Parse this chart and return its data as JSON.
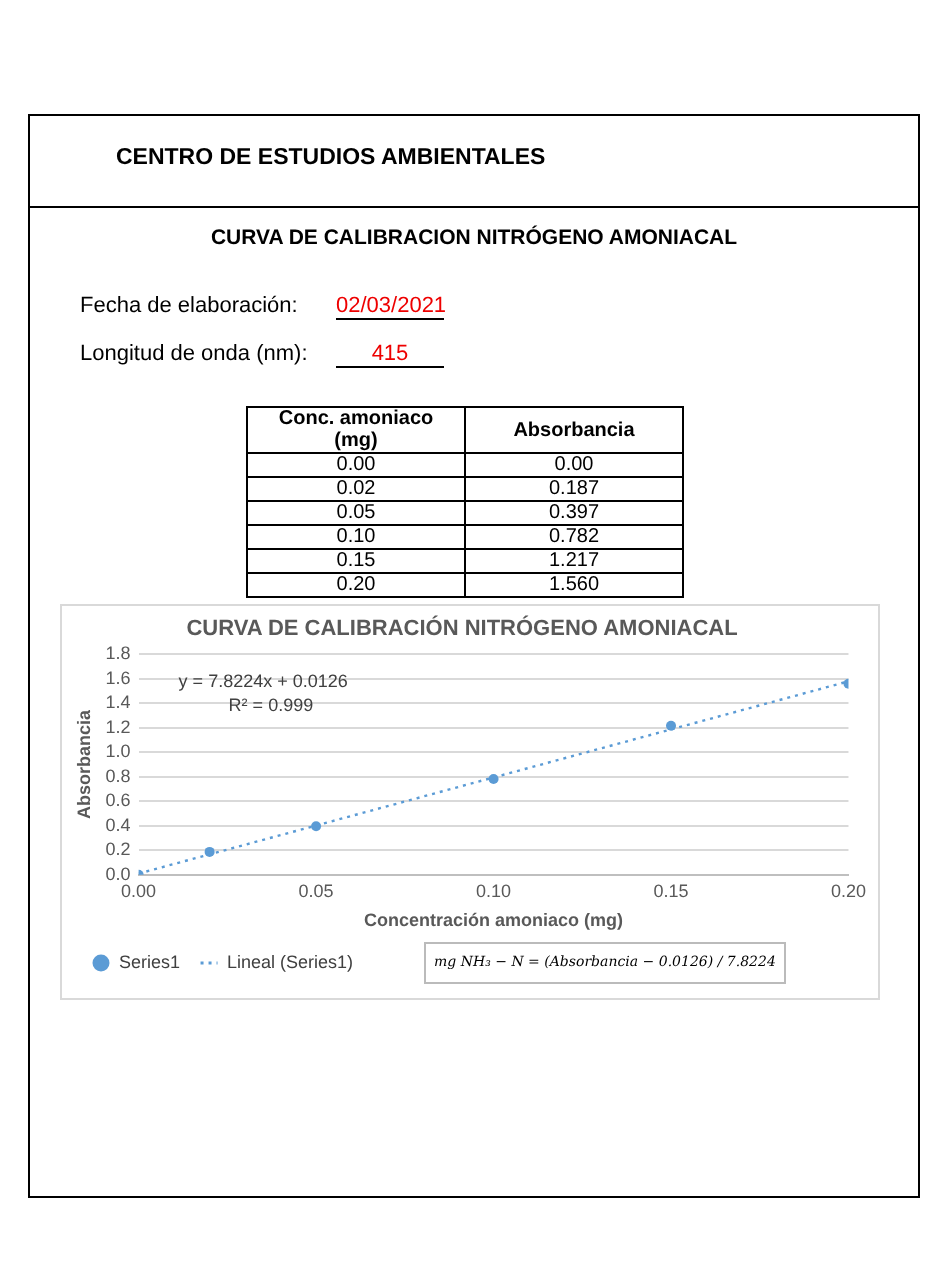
{
  "chart_data": {
    "type": "scatter",
    "title": "CURVA DE CALIBRACIÓN NITRÓGENO AMONIACAL",
    "xlabel": "Concentración amoniaco (mg)",
    "ylabel": "Absorbancia",
    "xlim": [
      0,
      0.2
    ],
    "xticks": [
      {
        "value": 0,
        "label": "0.00"
      },
      {
        "value": 0.05,
        "label": "0.05"
      },
      {
        "value": 0.1,
        "label": "0.10"
      },
      {
        "value": 0.15,
        "label": "0.15"
      },
      {
        "value": 0.2,
        "label": "0.20"
      }
    ],
    "ylim": [
      0,
      1.8
    ],
    "yticks": [
      {
        "value": 0,
        "label": "0.0"
      },
      {
        "value": 0.2,
        "label": "0.2"
      },
      {
        "value": 0.4,
        "label": "0.4"
      },
      {
        "value": 0.6,
        "label": "0.6"
      },
      {
        "value": 0.8,
        "label": "0.8"
      },
      {
        "value": 1,
        "label": "1.0"
      },
      {
        "value": 1.2,
        "label": "1.2"
      },
      {
        "value": 1.4,
        "label": "1.4"
      },
      {
        "value": 1.6,
        "label": "1.6"
      },
      {
        "value": 1.8,
        "label": "1.8"
      }
    ],
    "grid": "y",
    "legend": "bottom",
    "marker": "circle",
    "series": [
      {
        "name": "Series1",
        "type": "scatter",
        "color": "#5b9bd5",
        "x": [
          0,
          0.02,
          0.05,
          0.1,
          0.15,
          0.2
        ],
        "values": [
          0,
          0.187,
          0.397,
          0.782,
          1.217,
          1.56
        ]
      },
      {
        "name": "Lineal (Series1)",
        "type": "line",
        "color": "#5b9bd5",
        "line_style": "dotted",
        "marker": "none",
        "x": [
          0,
          0.2
        ],
        "values": [
          0.01,
          1.58
        ]
      }
    ],
    "annotations": [
      "CENTRO DE ESTUDIOS AMBIENTALES",
      "CURVA DE CALIBRACION NITRÓGENO AMONIACAL",
      "Fecha de elaboración:",
      "02/03/2021",
      "Longitud de onda (nm):",
      "415",
      "Conc. amoniaco (mg)",
      "Absorbancia",
      "y = 7.8224x + 0.0126",
      "R² = 0.999",
      "mg NH₃ − N = (Absorbancia − 0.0126) / 7.8224",
      "0.00",
      "0.02",
      "0.05",
      "0.10",
      "0.15",
      "0.20",
      "0.00",
      "0.187",
      "0.397",
      "0.782",
      "1.217",
      "1.560"
    ]
  }
}
